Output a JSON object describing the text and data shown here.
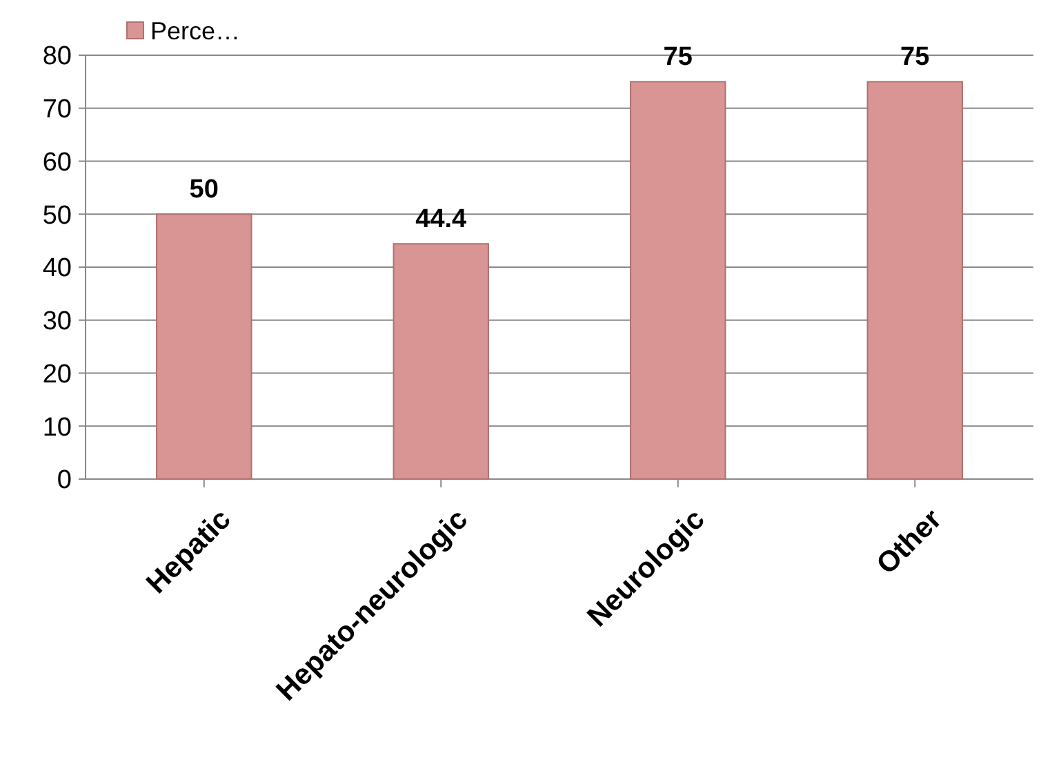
{
  "chart_data": {
    "type": "bar",
    "categories": [
      "Hepatic",
      "Hepato-neurologic",
      "Neurologic",
      "Other"
    ],
    "series": [
      {
        "name": "Perce…",
        "color": "#d99594",
        "values": [
          50,
          44.4,
          75,
          75
        ]
      }
    ],
    "ylim": [
      0,
      80
    ],
    "yticks": [
      0,
      10,
      20,
      30,
      40,
      50,
      60,
      70,
      80
    ],
    "grid": "y",
    "legend": "top left",
    "data_labels": true
  }
}
